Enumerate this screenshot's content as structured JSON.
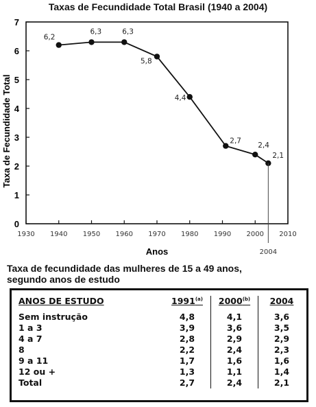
{
  "chart_data": {
    "type": "line",
    "title": "Taxas de Fecundidade Total Brasil (1940  a  2004)",
    "xlabel": "Anos",
    "ylabel": "Taxa de Fecundidade Total",
    "xlim": [
      1930,
      2010
    ],
    "ylim": [
      0,
      7
    ],
    "xticks": [
      "1930",
      "1940",
      "1950",
      "1960",
      "1970",
      "1980",
      "1990",
      "2000",
      "2010"
    ],
    "yticks": [
      "0",
      "1",
      "2",
      "3",
      "4",
      "5",
      "6",
      "7"
    ],
    "grid": false,
    "series": [
      {
        "x": [
          1940,
          1950,
          1960,
          1970,
          1980,
          1991,
          2000,
          2004
        ],
        "y": [
          6.2,
          6.3,
          6.3,
          5.8,
          4.4,
          2.7,
          2.4,
          2.1
        ],
        "labels": [
          "6,2",
          "6,3",
          "6,3",
          "5,8",
          "4,4",
          "2,7",
          "2,4",
          "2,1"
        ]
      }
    ],
    "annotations": [
      {
        "x": 2004,
        "text": "2004"
      }
    ]
  },
  "table": {
    "title_line1": "Taxa de fecundidade das mulheres de 15 a 49 anos,",
    "title_line2": "segundo anos de estudo",
    "headers": [
      "ANOS DE ESTUDO",
      "1991",
      "2000",
      "2004"
    ],
    "header_notes": [
      "",
      "(a)",
      "(b)",
      ""
    ],
    "rows": [
      [
        "Sem instrução",
        "4,8",
        "4,1",
        "3,6"
      ],
      [
        "1 a 3",
        "3,9",
        "3,6",
        "3,5"
      ],
      [
        "4 a 7",
        "2,8",
        "2,9",
        "2,9"
      ],
      [
        "8",
        "2,2",
        "2,4",
        "2,3"
      ],
      [
        "9 a 11",
        "1,7",
        "1,6",
        "1,6"
      ],
      [
        "12 ou +",
        "1,3",
        "1,1",
        "1,4"
      ],
      [
        "Total",
        "2,7",
        "2,4",
        "2,1"
      ]
    ]
  }
}
